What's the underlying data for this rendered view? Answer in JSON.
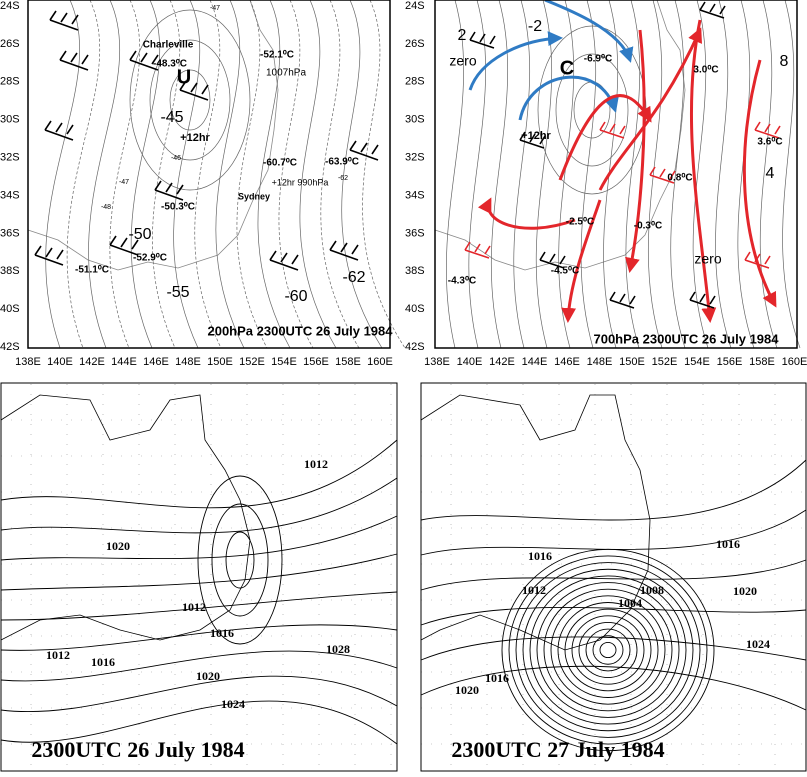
{
  "axes": {
    "lat": [
      "24S",
      "26S",
      "28S",
      "30S",
      "32S",
      "34S",
      "36S",
      "38S",
      "40S",
      "42S"
    ],
    "lon": [
      "138E",
      "140E",
      "142E",
      "144E",
      "146E",
      "148E",
      "150E",
      "152E",
      "154E",
      "156E",
      "158E",
      "160E"
    ]
  },
  "panels": [
    {
      "title": "200hPa 2300UTC 26 July 1984",
      "labels": [
        "Charleville",
        "-48.3⁰C",
        "U",
        "-45",
        "+12hr",
        "-52.1⁰C",
        "1007hPa",
        "-60.7⁰C",
        "+12hr 990hPa",
        "Sydney",
        "-63.9⁰C",
        "-50.3⁰C",
        "-50",
        "-52.9⁰C",
        "-51.1⁰C",
        "-55",
        "-60",
        "-62",
        "-47",
        "-46",
        "-47",
        "-48",
        "-62"
      ]
    },
    {
      "title": "700hPa 2300UTC 26 July 1984",
      "labels": [
        "2",
        "zero",
        "-2",
        "C",
        "-6.9⁰C",
        "+12hr",
        "3.0⁰C",
        "8",
        "3.6⁰C",
        "0.8⁰C",
        "4",
        "-2.5⁰C",
        "-0.3⁰C",
        "zero",
        "-4.5⁰C",
        "-4.3⁰C"
      ]
    },
    {
      "title": "2300UTC 26 July 1984",
      "labels": [
        "1012",
        "1020",
        "1012",
        "1016",
        "1012",
        "1016",
        "1028",
        "1020",
        "1024"
      ]
    },
    {
      "title": "2300UTC 27 July 1984",
      "labels": [
        "1016",
        "1012",
        "1008",
        "1004",
        "1016",
        "1020",
        "1024",
        "1016",
        "1020"
      ]
    }
  ]
}
